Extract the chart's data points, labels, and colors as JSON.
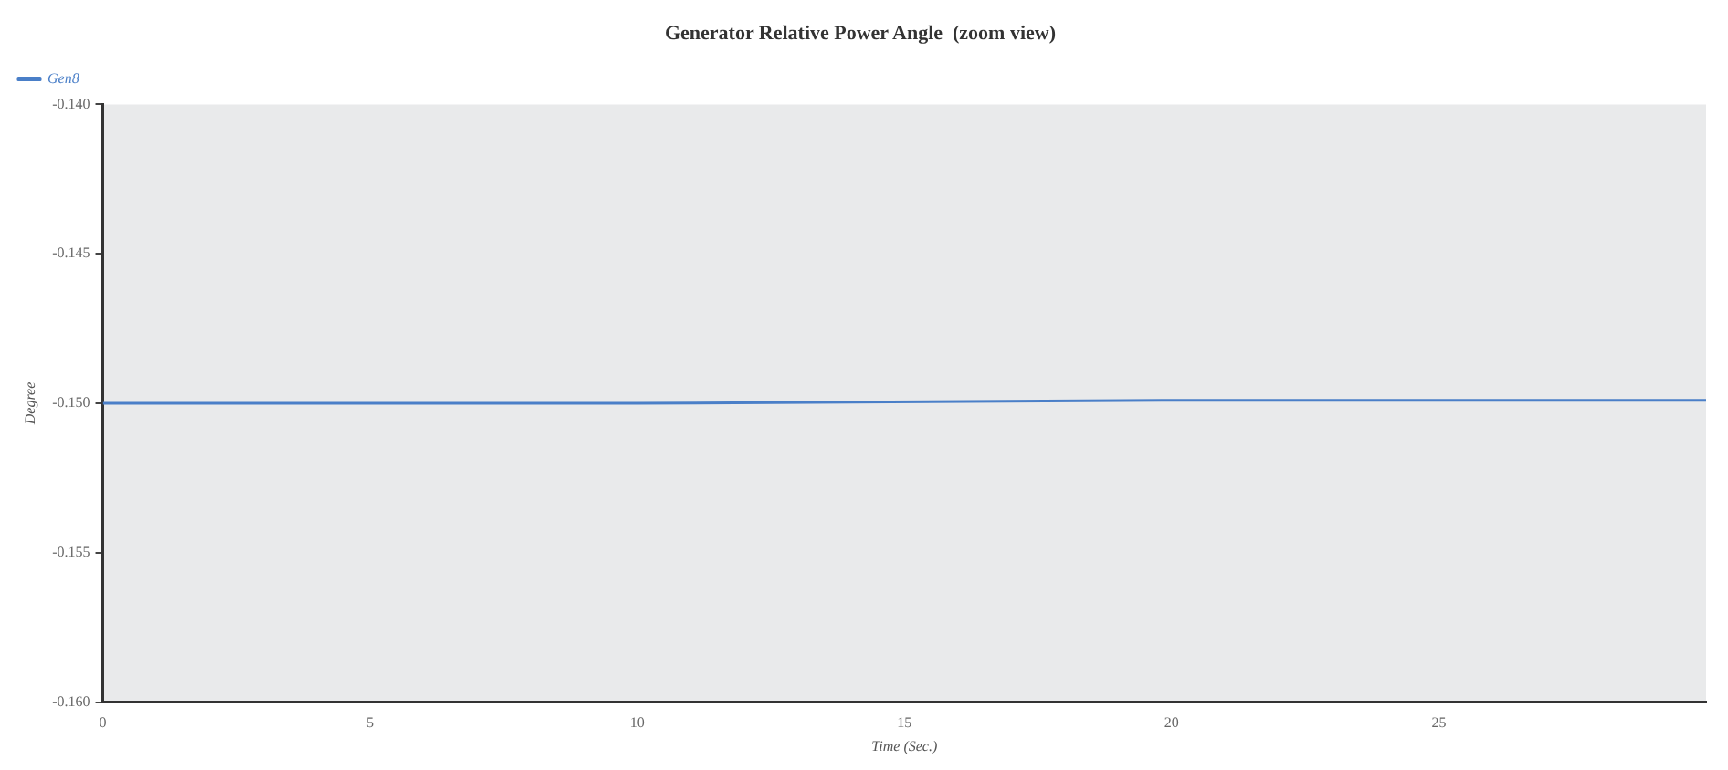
{
  "chart_data": {
    "type": "line",
    "title": "Generator Relative Power Angle  (zoom view)",
    "xlabel": "Time (Sec.)",
    "ylabel": "Degree",
    "x": [
      0,
      10,
      20,
      30
    ],
    "series": [
      {
        "name": "Gen8",
        "color": "#4a7fc8",
        "values": [
          -0.15,
          -0.15,
          -0.1499,
          -0.1499
        ]
      }
    ],
    "xlim": [
      0,
      30
    ],
    "xticks": [
      0,
      5,
      10,
      15,
      20,
      25
    ],
    "ylim": [
      -0.16,
      -0.14
    ],
    "yticks": [
      {
        "value": -0.16,
        "label": "-0.160"
      },
      -0.155,
      {
        "value": -0.15,
        "label": "-0.150"
      },
      -0.145,
      {
        "value": -0.14,
        "label": "-0.140"
      }
    ],
    "grid": false,
    "legend": "top left",
    "marker": "none",
    "line_style": "solid"
  }
}
